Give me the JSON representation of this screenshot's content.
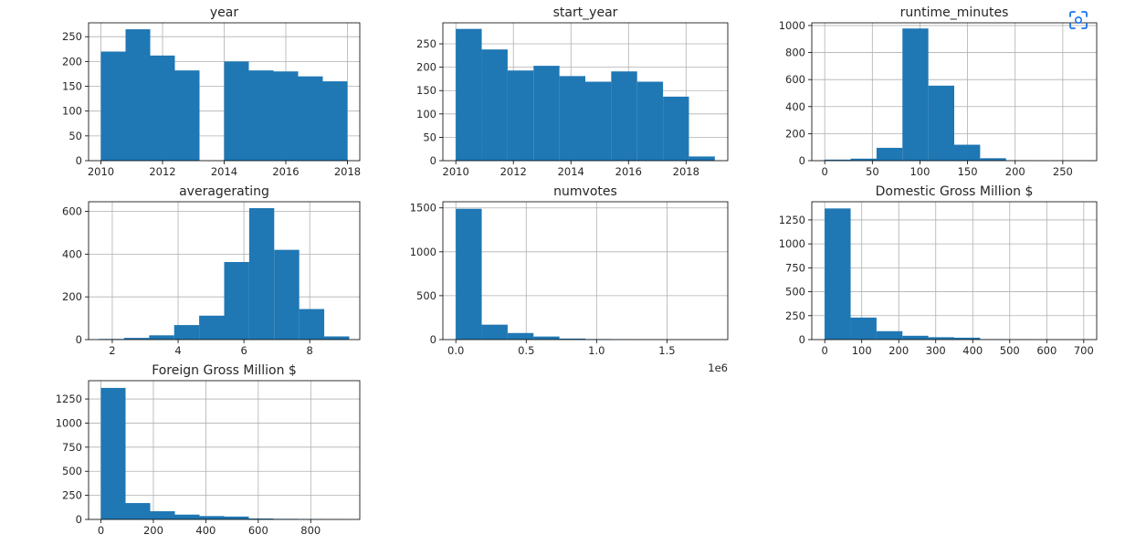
{
  "toolbar": {
    "focus_icon": "focus-view-icon",
    "accent": "#1a73e8"
  },
  "colors": {
    "bar": "#1f77b4",
    "grid": "#b0b0b0",
    "axis": "#000000",
    "text": "#262626"
  },
  "chart_data": [
    {
      "type": "bar",
      "title": "year",
      "xlim": [
        2009.6,
        2018.4
      ],
      "ylim": [
        0,
        278
      ],
      "xticks": [
        2010,
        2012,
        2014,
        2016,
        2018
      ],
      "xtick_labels": [
        "2010",
        "2012",
        "2014",
        "2016",
        "2018"
      ],
      "yticks": [
        0,
        50,
        100,
        150,
        200,
        250
      ],
      "ytick_labels": [
        "0",
        "50",
        "100",
        "150",
        "200",
        "250"
      ],
      "bins": [
        2010,
        2010.8,
        2011.6,
        2012.4,
        2013.2,
        2014.0,
        2014.8,
        2015.6,
        2016.4,
        2017.2,
        2018.0
      ],
      "counts": [
        220,
        265,
        212,
        182,
        0,
        200,
        182,
        180,
        170,
        160
      ],
      "grid": true
    },
    {
      "type": "bar",
      "title": "start_year",
      "xlim": [
        2009.55,
        2019.45
      ],
      "ylim": [
        0,
        295
      ],
      "xticks": [
        2010,
        2012,
        2014,
        2016,
        2018
      ],
      "xtick_labels": [
        "2010",
        "2012",
        "2014",
        "2016",
        "2018"
      ],
      "yticks": [
        0,
        50,
        100,
        150,
        200,
        250
      ],
      "ytick_labels": [
        "0",
        "50",
        "100",
        "150",
        "200",
        "250"
      ],
      "bins": [
        2010,
        2010.9,
        2011.8,
        2012.7,
        2013.6,
        2014.5,
        2015.4,
        2016.3,
        2017.2,
        2018.1,
        2019.0
      ],
      "counts": [
        282,
        238,
        193,
        203,
        181,
        169,
        191,
        169,
        137,
        9
      ],
      "grid": true
    },
    {
      "type": "bar",
      "title": "runtime_minutes",
      "xlim": [
        -13.6,
        285.6
      ],
      "ylim": [
        0,
        1020
      ],
      "xticks": [
        0,
        50,
        100,
        150,
        200,
        250
      ],
      "xtick_labels": [
        "0",
        "50",
        "100",
        "150",
        "200",
        "250"
      ],
      "yticks": [
        0,
        200,
        400,
        600,
        800,
        1000
      ],
      "ytick_labels": [
        "0",
        "200",
        "400",
        "600",
        "800",
        "1000"
      ],
      "bins": [
        0,
        27.2,
        54.4,
        81.6,
        108.8,
        136,
        163.2,
        190.4,
        217.6,
        244.8,
        272
      ],
      "counts": [
        8,
        15,
        95,
        978,
        555,
        118,
        18,
        2,
        1,
        1
      ],
      "grid": true
    },
    {
      "type": "bar",
      "title": "averagerating",
      "xlim": [
        1.28,
        9.52
      ],
      "ylim": [
        0,
        645
      ],
      "xticks": [
        2,
        4,
        6,
        8
      ],
      "xtick_labels": [
        "2",
        "4",
        "6",
        "8"
      ],
      "yticks": [
        0,
        200,
        400,
        600
      ],
      "ytick_labels": [
        "0",
        "200",
        "400",
        "600"
      ],
      "bins": [
        1.6,
        2.36,
        3.12,
        3.88,
        4.64,
        5.4,
        6.16,
        6.92,
        7.68,
        8.44,
        9.2
      ],
      "counts": [
        3,
        8,
        20,
        68,
        112,
        363,
        615,
        420,
        143,
        15
      ],
      "grid": true
    },
    {
      "type": "bar",
      "title": "numvotes",
      "xlim": [
        -92000,
        1932000
      ],
      "ylim": [
        0,
        1570
      ],
      "xticks": [
        0,
        500000,
        1000000,
        1500000
      ],
      "xtick_labels": [
        "0.0",
        "0.5",
        "1.0",
        "1.5"
      ],
      "yticks": [
        0,
        500,
        1000,
        1500
      ],
      "ytick_labels": [
        "0",
        "500",
        "1000",
        "1500"
      ],
      "bins": [
        0,
        184000,
        368000,
        552000,
        736000,
        920000,
        1104000,
        1288000,
        1472000,
        1656000,
        1840000
      ],
      "counts": [
        1490,
        170,
        75,
        35,
        12,
        6,
        3,
        2,
        1,
        1
      ],
      "offset_text": "1e6",
      "grid": true
    },
    {
      "type": "bar",
      "title": "Domestic Gross Million $",
      "xlim": [
        -35,
        735
      ],
      "ylim": [
        0,
        1440
      ],
      "xticks": [
        0,
        100,
        200,
        300,
        400,
        500,
        600,
        700
      ],
      "xtick_labels": [
        "0",
        "100",
        "200",
        "300",
        "400",
        "500",
        "600",
        "700"
      ],
      "yticks": [
        0,
        250,
        500,
        750,
        1000,
        1250
      ],
      "ytick_labels": [
        "0",
        "250",
        "500",
        "750",
        "1000",
        "1250"
      ],
      "bins": [
        0,
        70,
        140,
        210,
        280,
        350,
        420,
        490,
        560,
        630,
        700
      ],
      "counts": [
        1370,
        230,
        88,
        40,
        25,
        20,
        5,
        2,
        1,
        1
      ],
      "grid": true
    },
    {
      "type": "bar",
      "title": "Foreign Gross Million $",
      "xlim": [
        -47,
        987
      ],
      "ylim": [
        0,
        1440
      ],
      "xticks": [
        0,
        200,
        400,
        600,
        800
      ],
      "xtick_labels": [
        "0",
        "200",
        "400",
        "600",
        "800"
      ],
      "yticks": [
        0,
        250,
        500,
        750,
        1000,
        1250
      ],
      "ytick_labels": [
        "0",
        "250",
        "500",
        "750",
        "1000",
        "1250"
      ],
      "bins": [
        0,
        94,
        188,
        282,
        376,
        470,
        564,
        658,
        752,
        846,
        940
      ],
      "counts": [
        1365,
        170,
        85,
        50,
        35,
        30,
        10,
        6,
        4,
        2
      ],
      "grid": true
    }
  ]
}
